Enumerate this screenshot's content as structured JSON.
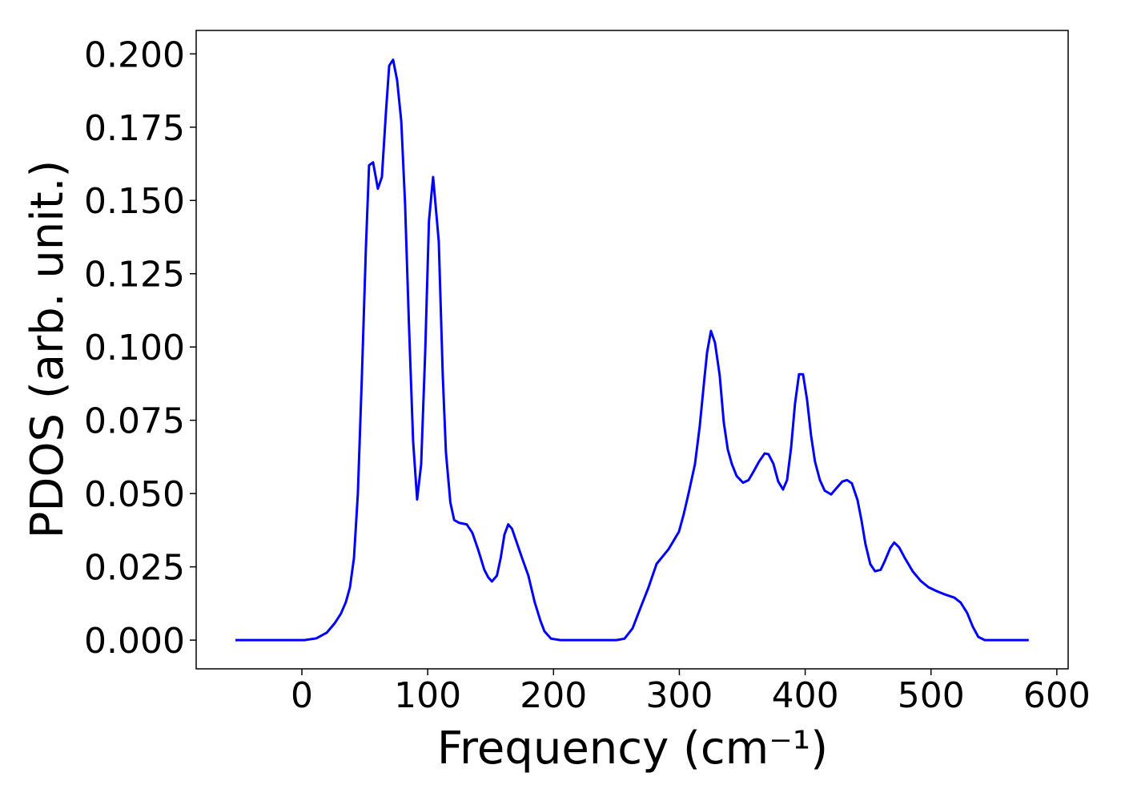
{
  "chart_data": {
    "type": "line",
    "xlabel": "Frequency (cm⁻¹)",
    "ylabel": "PDOS (arb. unit.)",
    "xlim": [
      -84,
      609
    ],
    "ylim": [
      -0.0098,
      0.208
    ],
    "xticks": [
      0,
      100,
      200,
      300,
      400,
      500,
      600
    ],
    "yticks": [
      {
        "value": 0,
        "label": "0.000"
      },
      {
        "value": 0.025,
        "label": "0.025"
      },
      {
        "value": 0.05,
        "label": "0.050"
      },
      {
        "value": 0.075,
        "label": "0.075"
      },
      {
        "value": 0.1,
        "label": "0.100"
      },
      {
        "value": 0.125,
        "label": "0.125"
      },
      {
        "value": 0.15,
        "label": "0.150"
      },
      {
        "value": 0.175,
        "label": "0.175"
      },
      {
        "value": 0.2,
        "label": "0.200"
      }
    ],
    "grid": false,
    "x": [
      -52.8,
      2,
      11.5,
      19.7,
      26,
      31,
      35,
      38.2,
      41.4,
      44.5,
      47.7,
      50.9,
      53.4,
      56.6,
      60.4,
      63.6,
      66.8,
      69.4,
      72.5,
      75.7,
      79,
      82,
      85,
      88.4,
      91.6,
      94.8,
      98,
      101,
      104.3,
      108.8,
      112,
      114.5,
      118,
      121,
      125,
      131,
      135.5,
      140,
      145,
      148,
      151,
      155,
      158,
      161,
      164,
      167,
      171,
      175,
      180,
      185,
      189.6,
      192.8,
      198,
      205.5,
      250,
      256.4,
      262.8,
      269.1,
      275.5,
      281.9,
      291.4,
      299.7,
      303.5,
      307.3,
      312.4,
      316.2,
      319.4,
      322,
      325.1,
      328.3,
      332.1,
      335.3,
      338.5,
      341.7,
      345.5,
      350.6,
      355,
      359.5,
      363.3,
      367.8,
      370.9,
      374.8,
      378.6,
      382.4,
      385.6,
      388.8,
      391.9,
      395.1,
      398.3,
      401.5,
      404.7,
      407.8,
      411.7,
      415.5,
      420.6,
      425,
      429.5,
      433.3,
      437.1,
      441.6,
      444.7,
      447.9,
      451.7,
      455.5,
      460,
      463.1,
      467.6,
      470.8,
      474.6,
      479.1,
      485.4,
      491.8,
      498.2,
      504.5,
      510.9,
      518.5,
      523.6,
      528.7,
      533.2,
      537.6,
      542.7,
      577.7
    ],
    "series": [
      {
        "name": "PDOS",
        "color": "#0000ff",
        "values": [
          0,
          0,
          0.0006,
          0.0025,
          0.0057,
          0.009,
          0.013,
          0.018,
          0.028,
          0.05,
          0.09,
          0.134,
          0.162,
          0.163,
          0.154,
          0.158,
          0.18,
          0.196,
          0.198,
          0.191,
          0.177,
          0.149,
          0.109,
          0.068,
          0.048,
          0.06,
          0.098,
          0.143,
          0.158,
          0.136,
          0.09,
          0.064,
          0.047,
          0.041,
          0.04,
          0.0395,
          0.0366,
          0.031,
          0.024,
          0.0215,
          0.02,
          0.022,
          0.028,
          0.036,
          0.0395,
          0.038,
          0.033,
          0.028,
          0.022,
          0.013,
          0.0066,
          0.003,
          0.0005,
          0,
          0,
          0.0005,
          0.004,
          0.011,
          0.018,
          0.026,
          0.031,
          0.037,
          0.043,
          0.05,
          0.06,
          0.073,
          0.087,
          0.098,
          0.1055,
          0.1015,
          0.0902,
          0.0743,
          0.065,
          0.0601,
          0.056,
          0.0537,
          0.0546,
          0.0579,
          0.0609,
          0.0637,
          0.0634,
          0.0601,
          0.0541,
          0.0514,
          0.0546,
          0.0656,
          0.0806,
          0.0907,
          0.0907,
          0.082,
          0.0697,
          0.0609,
          0.0546,
          0.051,
          0.0497,
          0.0519,
          0.0541,
          0.0546,
          0.0535,
          0.0478,
          0.041,
          0.0328,
          0.026,
          0.0235,
          0.024,
          0.0268,
          0.0314,
          0.0333,
          0.0317,
          0.0281,
          0.0235,
          0.0202,
          0.018,
          0.0167,
          0.0156,
          0.0145,
          0.0128,
          0.0093,
          0.0046,
          0.0011,
          0,
          0
        ]
      }
    ]
  }
}
